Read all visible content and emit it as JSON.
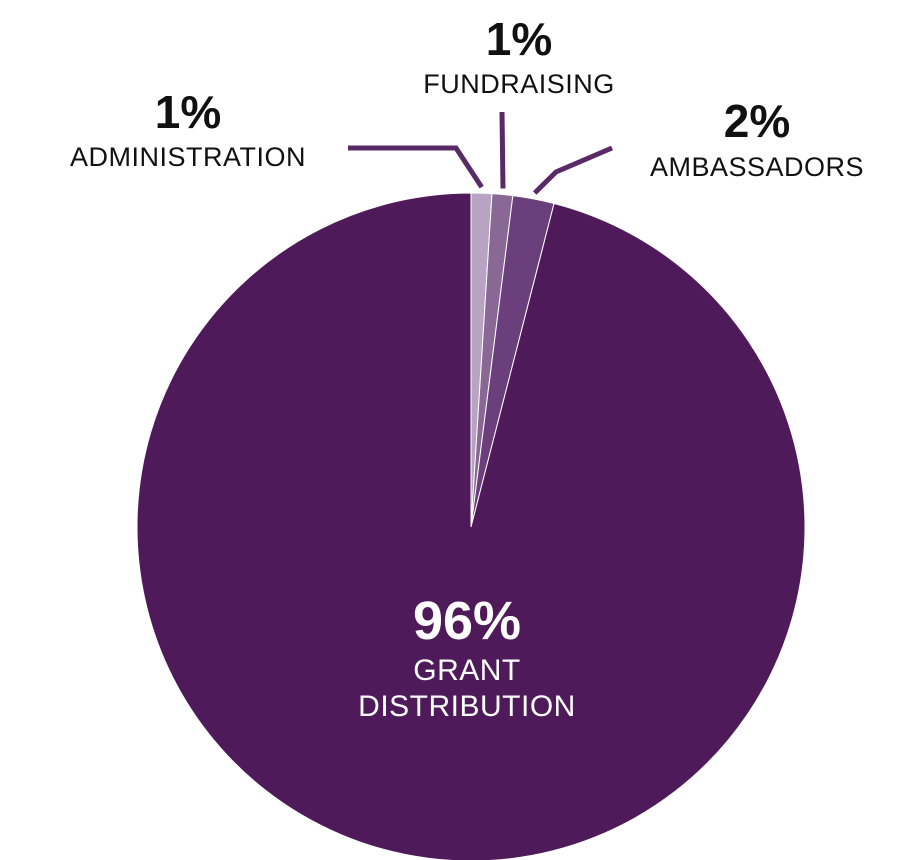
{
  "chart_data": {
    "type": "pie",
    "slices": [
      {
        "label": "ADMINISTRATION",
        "value": 1,
        "display": "1%",
        "color": "#b9a3c2"
      },
      {
        "label": "FUNDRAISING",
        "value": 1,
        "display": "1%",
        "color": "#8a6896"
      },
      {
        "label": "AMBASSADORS",
        "value": 2,
        "display": "2%",
        "color": "#6b3f7b"
      },
      {
        "label": "GRANT DISTRIBUTION",
        "value": 96,
        "display": "96%",
        "label_lines": [
          "GRANT",
          "DISTRIBUTION"
        ],
        "color": "#4e1a5a"
      }
    ],
    "leader_color": "#5a2a68",
    "start": "12 o'clock",
    "direction": "clockwise"
  }
}
